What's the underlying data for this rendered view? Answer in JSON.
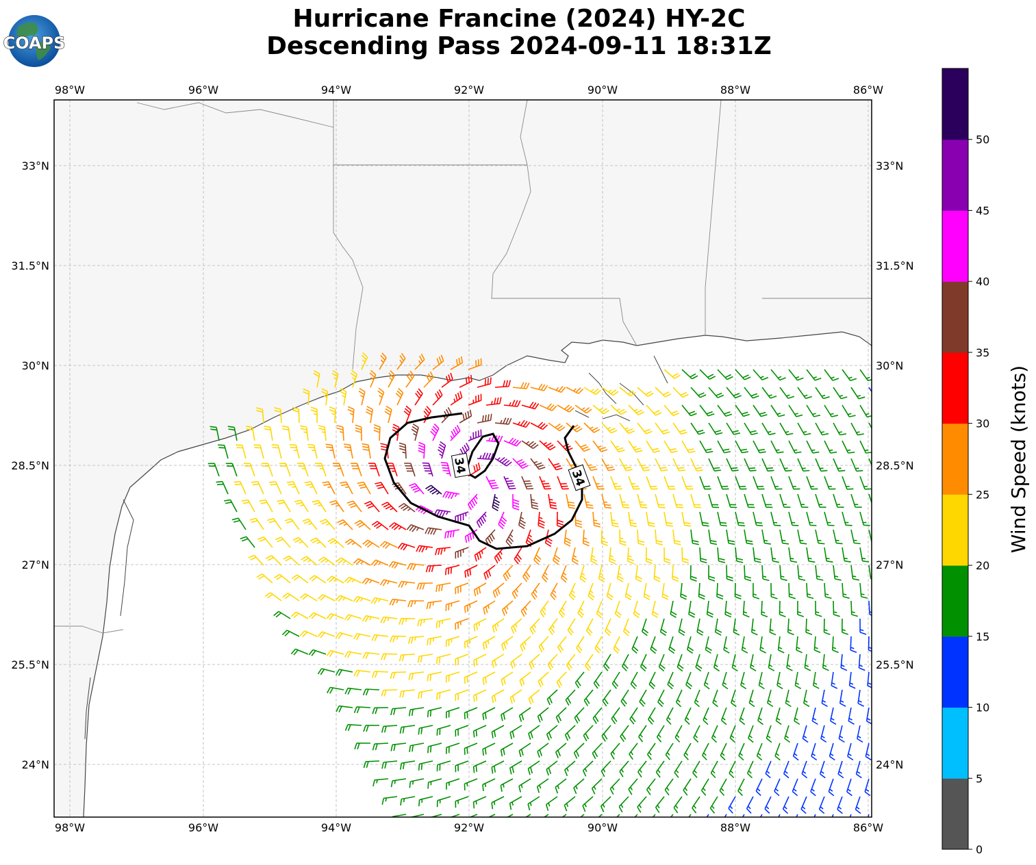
{
  "title": {
    "line1": "Hurricane Francine (2024) HY-2C",
    "line2": "Descending Pass 2024-09-11 18:31Z"
  },
  "logo": {
    "text": "COAPS"
  },
  "map": {
    "lon_labels": [
      "98°W",
      "96°W",
      "94°W",
      "92°W",
      "90°W",
      "88°W",
      "86°W"
    ],
    "lat_labels": [
      "33°N",
      "31.5°N",
      "30°N",
      "28.5°N",
      "27°N",
      "25.5°N",
      "24°N"
    ],
    "contour_labels": [
      "34",
      "34"
    ]
  },
  "colorbar": {
    "label": "Wind Speed (knots)",
    "ticks": [
      "0",
      "5",
      "10",
      "15",
      "20",
      "25",
      "30",
      "35",
      "40",
      "45",
      "50"
    ],
    "bins": [
      {
        "from": 0,
        "to": 5,
        "color": "#555555"
      },
      {
        "from": 5,
        "to": 10,
        "color": "#00bfff"
      },
      {
        "from": 10,
        "to": 15,
        "color": "#0033ff"
      },
      {
        "from": 15,
        "to": 20,
        "color": "#009000"
      },
      {
        "from": 20,
        "to": 25,
        "color": "#ffd700"
      },
      {
        "from": 25,
        "to": 30,
        "color": "#ff8c00"
      },
      {
        "from": 30,
        "to": 35,
        "color": "#ff0000"
      },
      {
        "from": 35,
        "to": 40,
        "color": "#803a2a"
      },
      {
        "from": 40,
        "to": 45,
        "color": "#ff00ff"
      },
      {
        "from": 45,
        "to": 50,
        "color": "#8800b0"
      },
      {
        "from": 50,
        "to": 55,
        "color": "#2b005c"
      }
    ]
  },
  "storm": {
    "center_lon": -92.0,
    "center_lat": 28.3,
    "max_wind_kt": 52
  }
}
